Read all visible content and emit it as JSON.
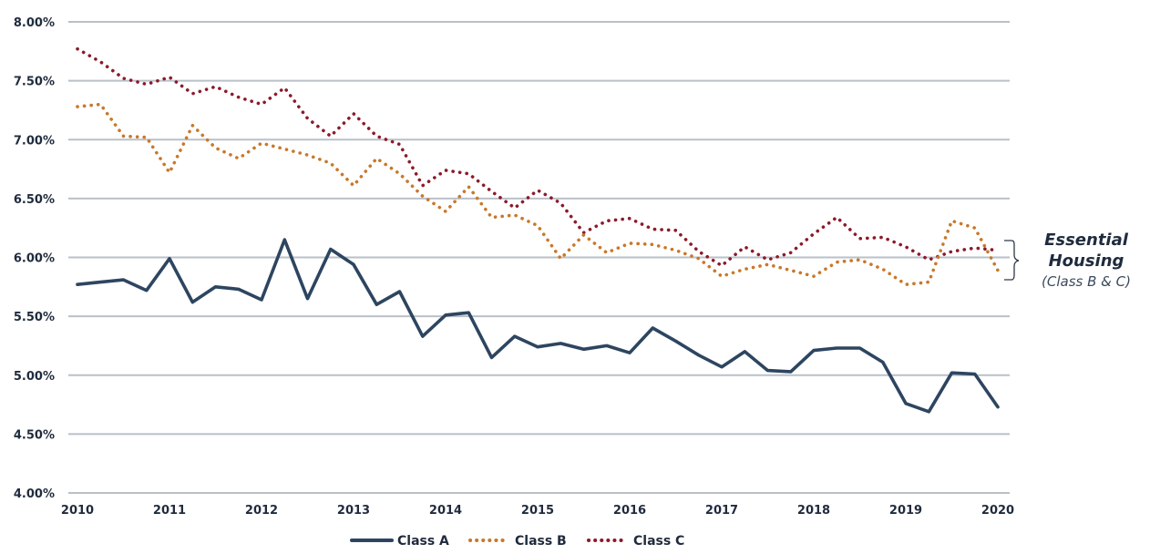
{
  "chart_data": {
    "type": "line",
    "title": "",
    "xlabel": "",
    "ylabel": "",
    "xlim": [
      2010,
      2020
    ],
    "ylim": [
      4.0,
      8.0
    ],
    "y_tick_labels": [
      "4.00%",
      "4.50%",
      "5.00%",
      "5.50%",
      "6.00%",
      "6.50%",
      "7.00%",
      "7.50%",
      "8.00%"
    ],
    "y_ticks": [
      4.0,
      4.5,
      5.0,
      5.5,
      6.0,
      6.5,
      7.0,
      7.5,
      8.0
    ],
    "x_tick_labels": [
      "2010",
      "2011",
      "2012",
      "2013",
      "2014",
      "2015",
      "2016",
      "2017",
      "2018",
      "2019",
      "2020"
    ],
    "x_ticks": [
      2010,
      2011,
      2012,
      2013,
      2014,
      2015,
      2016,
      2017,
      2018,
      2019,
      2020
    ],
    "grid": "horizontal",
    "legend_position": "bottom",
    "x": [
      2010.0,
      2010.25,
      2010.5,
      2010.75,
      2011.0,
      2011.25,
      2011.5,
      2011.75,
      2012.0,
      2012.25,
      2012.5,
      2012.75,
      2013.0,
      2013.25,
      2013.5,
      2013.75,
      2014.0,
      2014.25,
      2014.5,
      2014.75,
      2015.0,
      2015.25,
      2015.5,
      2015.75,
      2016.0,
      2016.25,
      2016.5,
      2016.75,
      2017.0,
      2017.25,
      2017.5,
      2017.75,
      2018.0,
      2018.25,
      2018.5,
      2018.75,
      2019.0,
      2019.25,
      2019.5,
      2019.75,
      2020.0
    ],
    "series": [
      {
        "name": "Class A",
        "style": "solid",
        "color": "#2d4560",
        "values": [
          5.77,
          5.79,
          5.81,
          5.72,
          5.99,
          5.62,
          5.75,
          5.73,
          5.64,
          6.15,
          5.65,
          6.07,
          5.94,
          5.6,
          5.71,
          5.33,
          5.51,
          5.53,
          5.15,
          5.33,
          5.24,
          5.27,
          5.22,
          5.25,
          5.19,
          5.4,
          5.29,
          5.17,
          5.07,
          5.2,
          5.04,
          5.03,
          5.21,
          5.23,
          5.23,
          5.11,
          4.76,
          4.69,
          5.02,
          5.01,
          4.73
        ]
      },
      {
        "name": "Class B",
        "style": "dotted",
        "color": "#c8782a",
        "values": [
          7.28,
          7.3,
          7.03,
          7.02,
          6.72,
          7.12,
          6.93,
          6.84,
          6.97,
          6.92,
          6.87,
          6.8,
          6.61,
          6.84,
          6.71,
          6.52,
          6.39,
          6.6,
          6.34,
          6.36,
          6.27,
          5.99,
          6.19,
          6.04,
          6.12,
          6.11,
          6.06,
          5.99,
          5.84,
          5.9,
          5.94,
          5.89,
          5.84,
          5.96,
          5.98,
          5.9,
          5.77,
          5.79,
          6.31,
          6.25,
          5.89
        ]
      },
      {
        "name": "Class C",
        "style": "dotted",
        "color": "#8b1a2b",
        "values": [
          7.77,
          7.66,
          7.52,
          7.47,
          7.53,
          7.39,
          7.45,
          7.36,
          7.3,
          7.44,
          7.18,
          7.03,
          7.22,
          7.03,
          6.96,
          6.61,
          6.74,
          6.71,
          6.56,
          6.42,
          6.57,
          6.46,
          6.21,
          6.31,
          6.33,
          6.24,
          6.23,
          6.05,
          5.93,
          6.09,
          5.98,
          6.04,
          6.2,
          6.34,
          6.16,
          6.17,
          6.09,
          5.98,
          6.05,
          6.08,
          6.06
        ]
      }
    ],
    "annotation": {
      "title_line1": "Essential",
      "title_line2": "Housing",
      "subtitle": "(Class B & C)"
    }
  }
}
